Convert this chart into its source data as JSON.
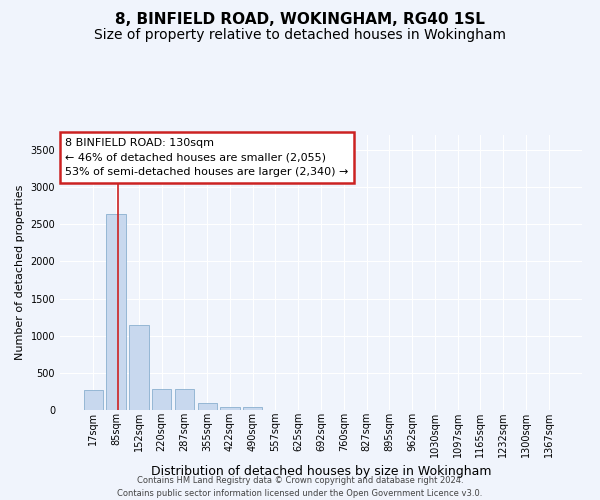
{
  "title": "8, BINFIELD ROAD, WOKINGHAM, RG40 1SL",
  "subtitle": "Size of property relative to detached houses in Wokingham",
  "xlabel": "Distribution of detached houses by size in Wokingham",
  "ylabel": "Number of detached properties",
  "bar_color": "#c8d8ee",
  "bar_edge_color": "#8ab0d0",
  "background_color": "#f0f4fc",
  "plot_bg_color": "#f0f4fc",
  "grid_color": "#ffffff",
  "categories": [
    "17sqm",
    "85sqm",
    "152sqm",
    "220sqm",
    "287sqm",
    "355sqm",
    "422sqm",
    "490sqm",
    "557sqm",
    "625sqm",
    "692sqm",
    "760sqm",
    "827sqm",
    "895sqm",
    "962sqm",
    "1030sqm",
    "1097sqm",
    "1165sqm",
    "1232sqm",
    "1300sqm",
    "1367sqm"
  ],
  "values": [
    270,
    2640,
    1140,
    280,
    280,
    90,
    45,
    35,
    2,
    2,
    2,
    2,
    2,
    2,
    2,
    2,
    2,
    2,
    2,
    2,
    2
  ],
  "ylim": [
    0,
    3700
  ],
  "yticks": [
    0,
    500,
    1000,
    1500,
    2000,
    2500,
    3000,
    3500
  ],
  "vline_x": 1.1,
  "annotation_text": "8 BINFIELD ROAD: 130sqm\n← 46% of detached houses are smaller (2,055)\n53% of semi-detached houses are larger (2,340) →",
  "footer_line1": "Contains HM Land Registry data © Crown copyright and database right 2024.",
  "footer_line2": "Contains public sector information licensed under the Open Government Licence v3.0.",
  "annotation_box_edgecolor": "#cc2222",
  "annotation_fill_color": "#ffffff",
  "title_fontsize": 11,
  "subtitle_fontsize": 10,
  "tick_fontsize": 7,
  "ylabel_fontsize": 8,
  "xlabel_fontsize": 9,
  "footer_fontsize": 6,
  "annotation_fontsize": 8
}
